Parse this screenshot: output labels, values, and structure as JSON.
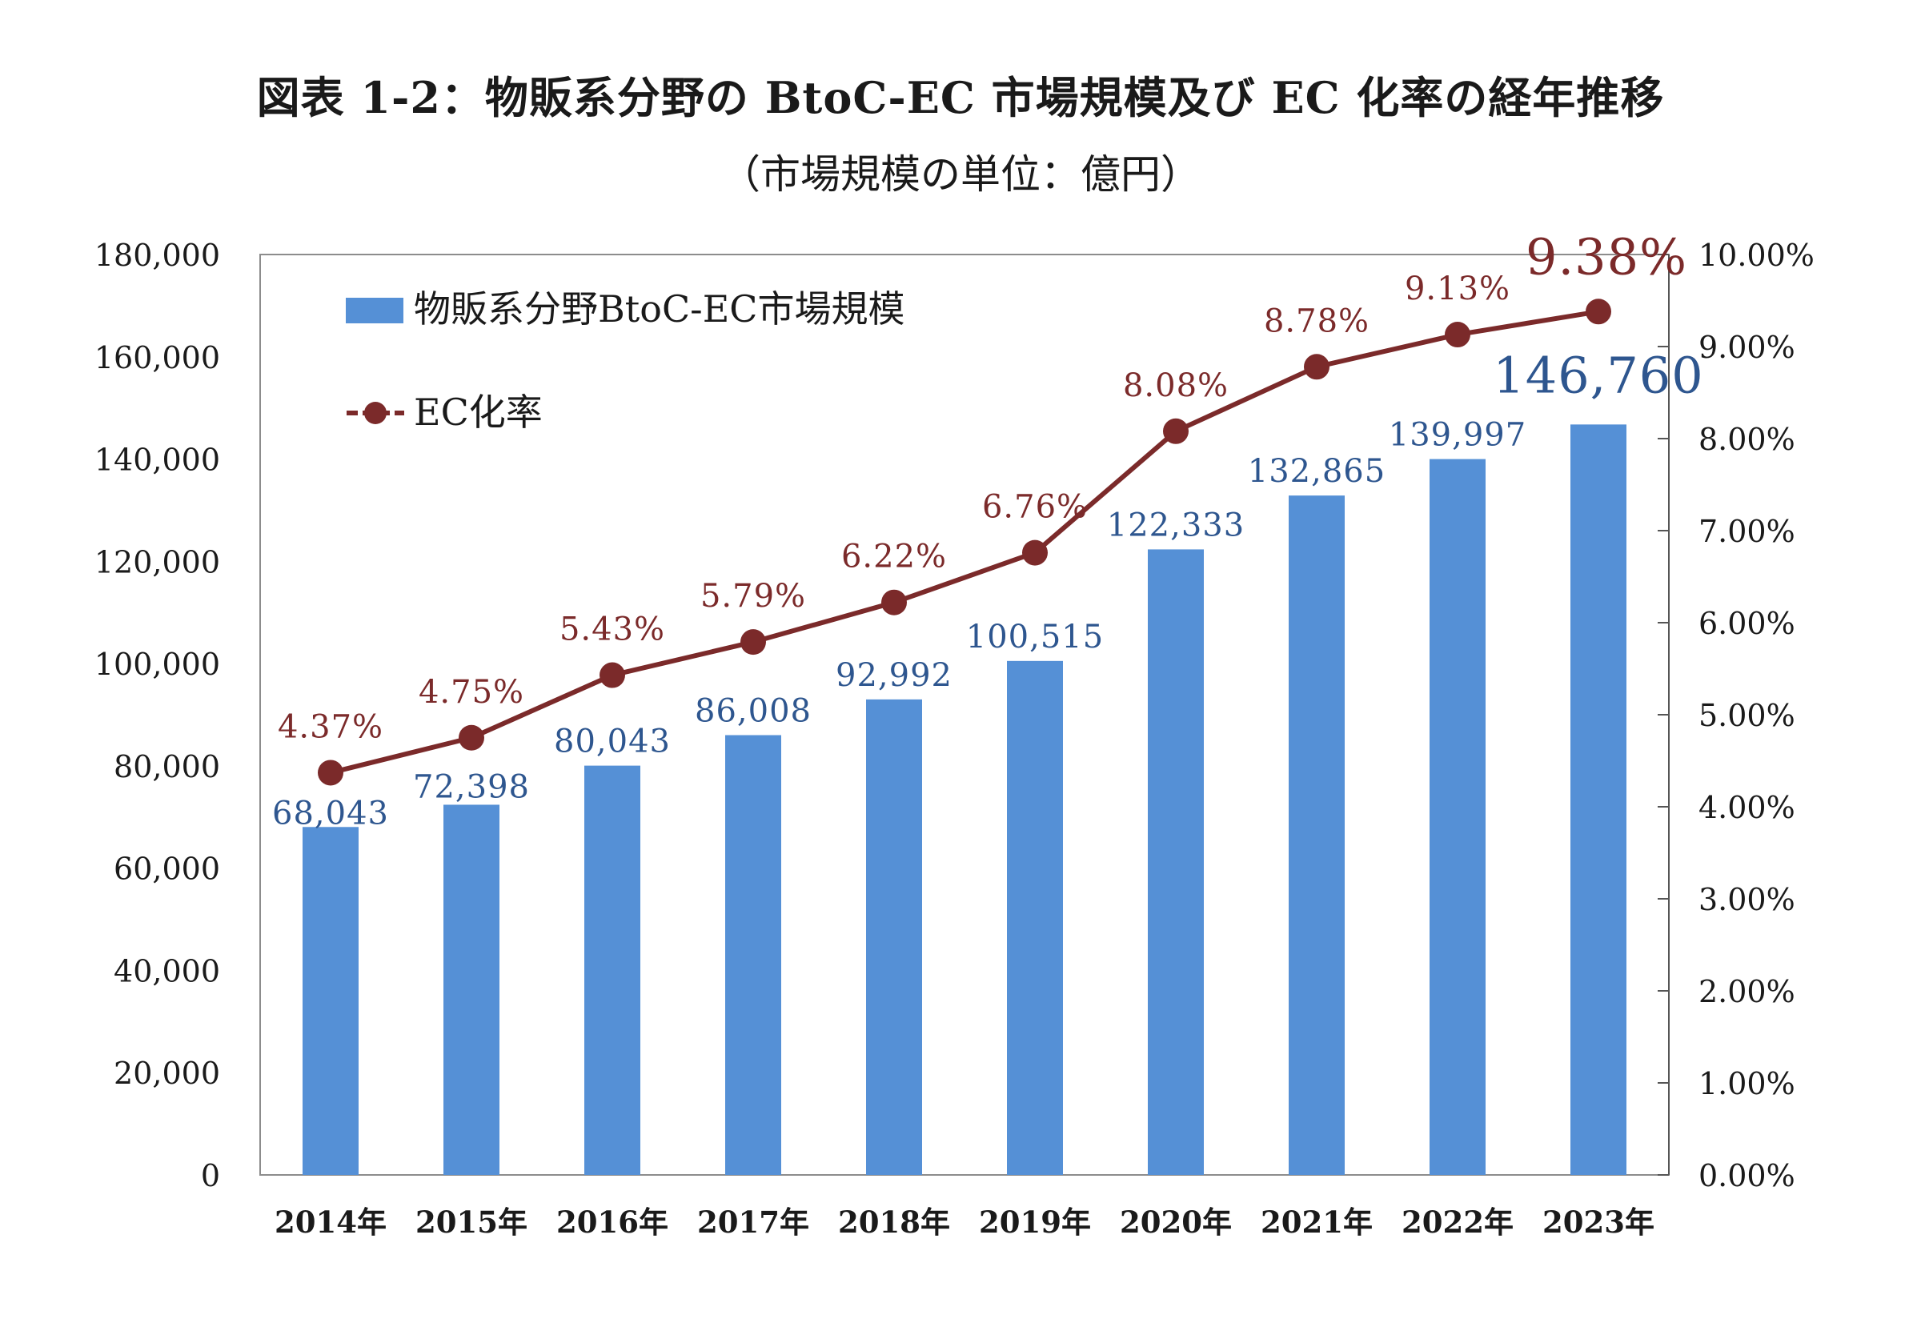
{
  "chart_data": {
    "type": "bar+line",
    "title": "図表 1-2：物販系分野の BtoC-EC 市場規模及び EC 化率の経年推移",
    "subtitle": "（市場規模の単位：億円）",
    "categories": [
      "2014年",
      "2015年",
      "2016年",
      "2017年",
      "2018年",
      "2019年",
      "2020年",
      "2021年",
      "2022年",
      "2023年"
    ],
    "series": [
      {
        "name": "物販系分野BtoC-EC市場規模",
        "type": "bar",
        "axis": "left",
        "color": "#5590d6",
        "label_color": "#2e568f",
        "values": [
          68043,
          72398,
          80043,
          86008,
          92992,
          100515,
          122333,
          132865,
          139997,
          146760
        ],
        "labels": [
          "68,043",
          "72,398",
          "80,043",
          "86,008",
          "92,992",
          "100,515",
          "122,333",
          "132,865",
          "139,997",
          "146,760"
        ]
      },
      {
        "name": "EC化率",
        "type": "line",
        "axis": "right",
        "color": "#7b2a2a",
        "values": [
          4.37,
          4.75,
          5.43,
          5.79,
          6.22,
          6.76,
          8.08,
          8.78,
          9.13,
          9.38
        ],
        "labels": [
          "4.37%",
          "4.75%",
          "5.43%",
          "5.79%",
          "6.22%",
          "6.76%",
          "8.08%",
          "8.78%",
          "9.13%",
          "9.38%"
        ]
      }
    ],
    "left_axis": {
      "ylim": [
        0,
        180000
      ],
      "ticks": [
        0,
        20000,
        40000,
        60000,
        80000,
        100000,
        120000,
        140000,
        160000,
        180000
      ],
      "tick_labels": [
        "0",
        "20,000",
        "40,000",
        "60,000",
        "80,000",
        "100,000",
        "120,000",
        "140,000",
        "160,000",
        "180,000"
      ]
    },
    "right_axis": {
      "ylim": [
        0,
        10
      ],
      "ticks": [
        0,
        1,
        2,
        3,
        4,
        5,
        6,
        7,
        8,
        9,
        10
      ],
      "tick_labels": [
        "0.00%",
        "1.00%",
        "2.00%",
        "3.00%",
        "4.00%",
        "5.00%",
        "6.00%",
        "7.00%",
        "8.00%",
        "9.00%",
        "10.00%"
      ]
    },
    "grid": false,
    "legend_position": "top-left"
  }
}
